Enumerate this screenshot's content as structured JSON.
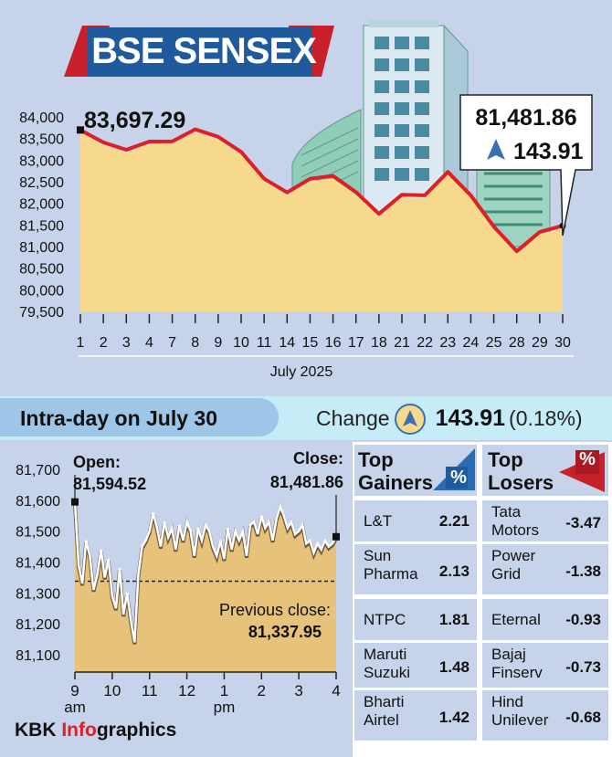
{
  "title": "BSE SENSEX",
  "colors": {
    "background": "#c6d3ea",
    "area_fill": "#f6d98c",
    "line": "#e01e26",
    "banner": "#1f5a9c",
    "banner_accent": "#c8202a",
    "gainer_accent": "#2a6db5",
    "loser_accent": "#c8202a",
    "section_bar": "#c6ecf7"
  },
  "chart_data": [
    {
      "type": "area",
      "categories": [
        "1",
        "2",
        "3",
        "4",
        "7",
        "8",
        "9",
        "10",
        "11",
        "14",
        "15",
        "16",
        "17",
        "18",
        "21",
        "22",
        "23",
        "24",
        "25",
        "28",
        "29",
        "30"
      ],
      "values": [
        83697.29,
        83410,
        83240,
        83430,
        83432,
        83712,
        83540,
        83190,
        82570,
        82253,
        82570,
        82634,
        82260,
        81757,
        82200,
        82187,
        82726,
        82185,
        81463,
        80891,
        81338,
        81481.86
      ],
      "yticks": [
        "84,000",
        "83,500",
        "83,000",
        "82,500",
        "82,000",
        "81,500",
        "81,000",
        "80,500",
        "80,000",
        "79,500"
      ],
      "ylim": [
        79500,
        84000
      ],
      "xlabel": "July 2025",
      "first_label": "83,697.29",
      "last_label": "81,481.86",
      "last_change": "143.91",
      "grid": false
    },
    {
      "type": "area",
      "title": "Intra-day on July 30",
      "open_label": "Open:",
      "open_value": "81,594.52",
      "close_label": "Close:",
      "close_value": "81,481.86",
      "prev_close_label": "Previous close:",
      "prev_close_value": "81,337.95",
      "prev_close": 81337.95,
      "yticks": [
        "81,700",
        "81,600",
        "81,500",
        "81,400",
        "81,300",
        "81,200",
        "81,100"
      ],
      "ylim": [
        81100,
        81700
      ],
      "xticks": [
        "9",
        "10",
        "11",
        "12",
        "1",
        "2",
        "3",
        "4"
      ],
      "xtick_sub": [
        "am",
        "",
        "",
        "",
        "pm",
        "",
        "",
        ""
      ],
      "xlim": [
        0,
        7
      ],
      "x": [
        0,
        0.1,
        0.2,
        0.3,
        0.4,
        0.5,
        0.6,
        0.7,
        0.8,
        0.9,
        1.0,
        1.1,
        1.2,
        1.3,
        1.4,
        1.5,
        1.6,
        1.7,
        1.8,
        1.9,
        2.0,
        2.1,
        2.2,
        2.3,
        2.4,
        2.5,
        2.6,
        2.7,
        2.8,
        2.9,
        3.0,
        3.1,
        3.2,
        3.3,
        3.4,
        3.5,
        3.6,
        3.7,
        3.8,
        3.9,
        4.0,
        4.1,
        4.2,
        4.3,
        4.4,
        4.5,
        4.6,
        4.7,
        4.8,
        4.9,
        5.0,
        5.1,
        5.2,
        5.3,
        5.4,
        5.5,
        5.6,
        5.7,
        5.8,
        5.9,
        6.0,
        6.1,
        6.2,
        6.3,
        6.4,
        6.5,
        6.6,
        6.7,
        6.8,
        6.9,
        7.0
      ],
      "values": [
        81594.52,
        81390,
        81330,
        81470,
        81420,
        81310,
        81360,
        81440,
        81350,
        81410,
        81290,
        81250,
        81380,
        81230,
        81300,
        81210,
        81140,
        81360,
        81450,
        81470,
        81500,
        81560,
        81510,
        81450,
        81530,
        81480,
        81510,
        81440,
        81520,
        81470,
        81530,
        81500,
        81420,
        81510,
        81470,
        81520,
        81500,
        81450,
        81420,
        81470,
        81410,
        81510,
        81440,
        81500,
        81470,
        81500,
        81420,
        81520,
        81530,
        81490,
        81550,
        81510,
        81530,
        81470,
        81540,
        81580,
        81550,
        81510,
        81530,
        81490,
        81500,
        81520,
        81460,
        81470,
        81430,
        81460,
        81440,
        81470,
        81450,
        81460,
        81481.86
      ]
    }
  ],
  "section": {
    "title": "Intra-day on July 30",
    "change_label": "Change",
    "change_value": "143.91",
    "change_pct": "(0.18%)"
  },
  "gainers": {
    "title_line1": "Top",
    "title_line2": "Gainers",
    "badge": "%",
    "rows": [
      {
        "name_line1": "L&T",
        "name_line2": "",
        "value": "2.21"
      },
      {
        "name_line1": "Sun",
        "name_line2": "Pharma",
        "value": "2.13"
      },
      {
        "name_line1": "NTPC",
        "name_line2": "",
        "value": "1.81"
      },
      {
        "name_line1": "Maruti",
        "name_line2": "Suzuki",
        "value": "1.48"
      },
      {
        "name_line1": "Bharti",
        "name_line2": "Airtel",
        "value": "1.42"
      }
    ]
  },
  "losers": {
    "title_line1": "Top",
    "title_line2": "Losers",
    "badge": "%",
    "rows": [
      {
        "name_line1": "Tata",
        "name_line2": "Motors",
        "value": "-3.47"
      },
      {
        "name_line1": "Power",
        "name_line2": "Grid",
        "value": "-1.38"
      },
      {
        "name_line1": "Eternal",
        "name_line2": "",
        "value": "-0.93"
      },
      {
        "name_line1": "Bajaj",
        "name_line2": "Finserv",
        "value": "-0.73"
      },
      {
        "name_line1": "Hind",
        "name_line2": "Unilever",
        "value": "-0.68"
      }
    ]
  },
  "footer": {
    "part1": "KBK ",
    "part2": "Info",
    "part3": "graphics"
  }
}
